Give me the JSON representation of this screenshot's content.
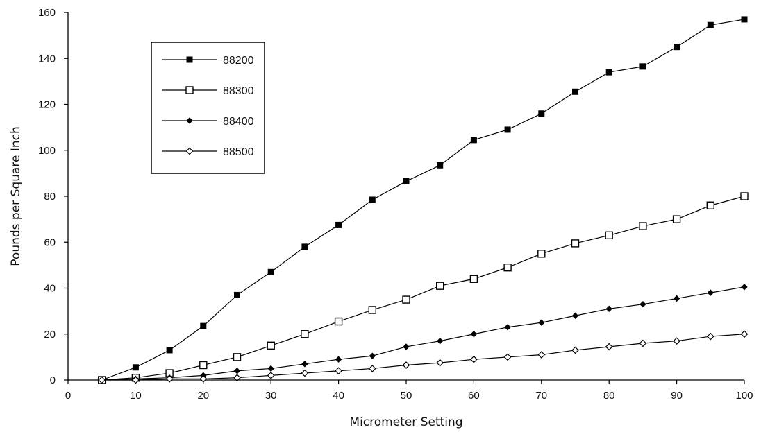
{
  "chart_data": {
    "type": "line",
    "title": "",
    "xlabel": "Micrometer Setting",
    "ylabel": "Pounds per Square Inch",
    "xlim": [
      0,
      100
    ],
    "ylim": [
      0,
      160
    ],
    "xticks": [
      "0",
      "10",
      "20",
      "30",
      "40",
      "50",
      "60",
      "70",
      "80",
      "90",
      "100"
    ],
    "yticks": [
      "0",
      "20",
      "40",
      "60",
      "80",
      "100",
      "120",
      "140",
      "160"
    ],
    "grid": false,
    "legend_position": "top-left",
    "x": [
      5,
      10,
      15,
      20,
      25,
      30,
      35,
      40,
      45,
      50,
      55,
      60,
      65,
      70,
      75,
      80,
      85,
      90,
      95,
      100
    ],
    "series": [
      {
        "name": "88200",
        "marker": "square-filled",
        "values": [
          0,
          5.5,
          13,
          23.5,
          37,
          47,
          58,
          67.5,
          78.5,
          86.5,
          93.5,
          104.5,
          109,
          116,
          125.5,
          134,
          136.5,
          145,
          154.5,
          157
        ]
      },
      {
        "name": "88300",
        "marker": "square-open",
        "values": [
          0,
          1,
          3,
          6.5,
          10,
          15,
          20,
          25.5,
          30.5,
          35,
          41,
          44,
          49,
          55,
          59.5,
          63,
          67,
          70,
          76,
          80
        ]
      },
      {
        "name": "88400",
        "marker": "diamond-filled",
        "values": [
          0,
          0.5,
          1,
          2,
          4,
          5,
          7,
          9,
          10.5,
          14.5,
          17,
          20,
          23,
          25,
          28,
          31,
          33,
          35.5,
          38,
          40.5
        ]
      },
      {
        "name": "88500",
        "marker": "diamond-open",
        "values": [
          0,
          0,
          0.5,
          0.5,
          1,
          2,
          3,
          4,
          5,
          6.5,
          7.5,
          9,
          10,
          11,
          13,
          14.5,
          16,
          17,
          19,
          20
        ]
      }
    ]
  }
}
